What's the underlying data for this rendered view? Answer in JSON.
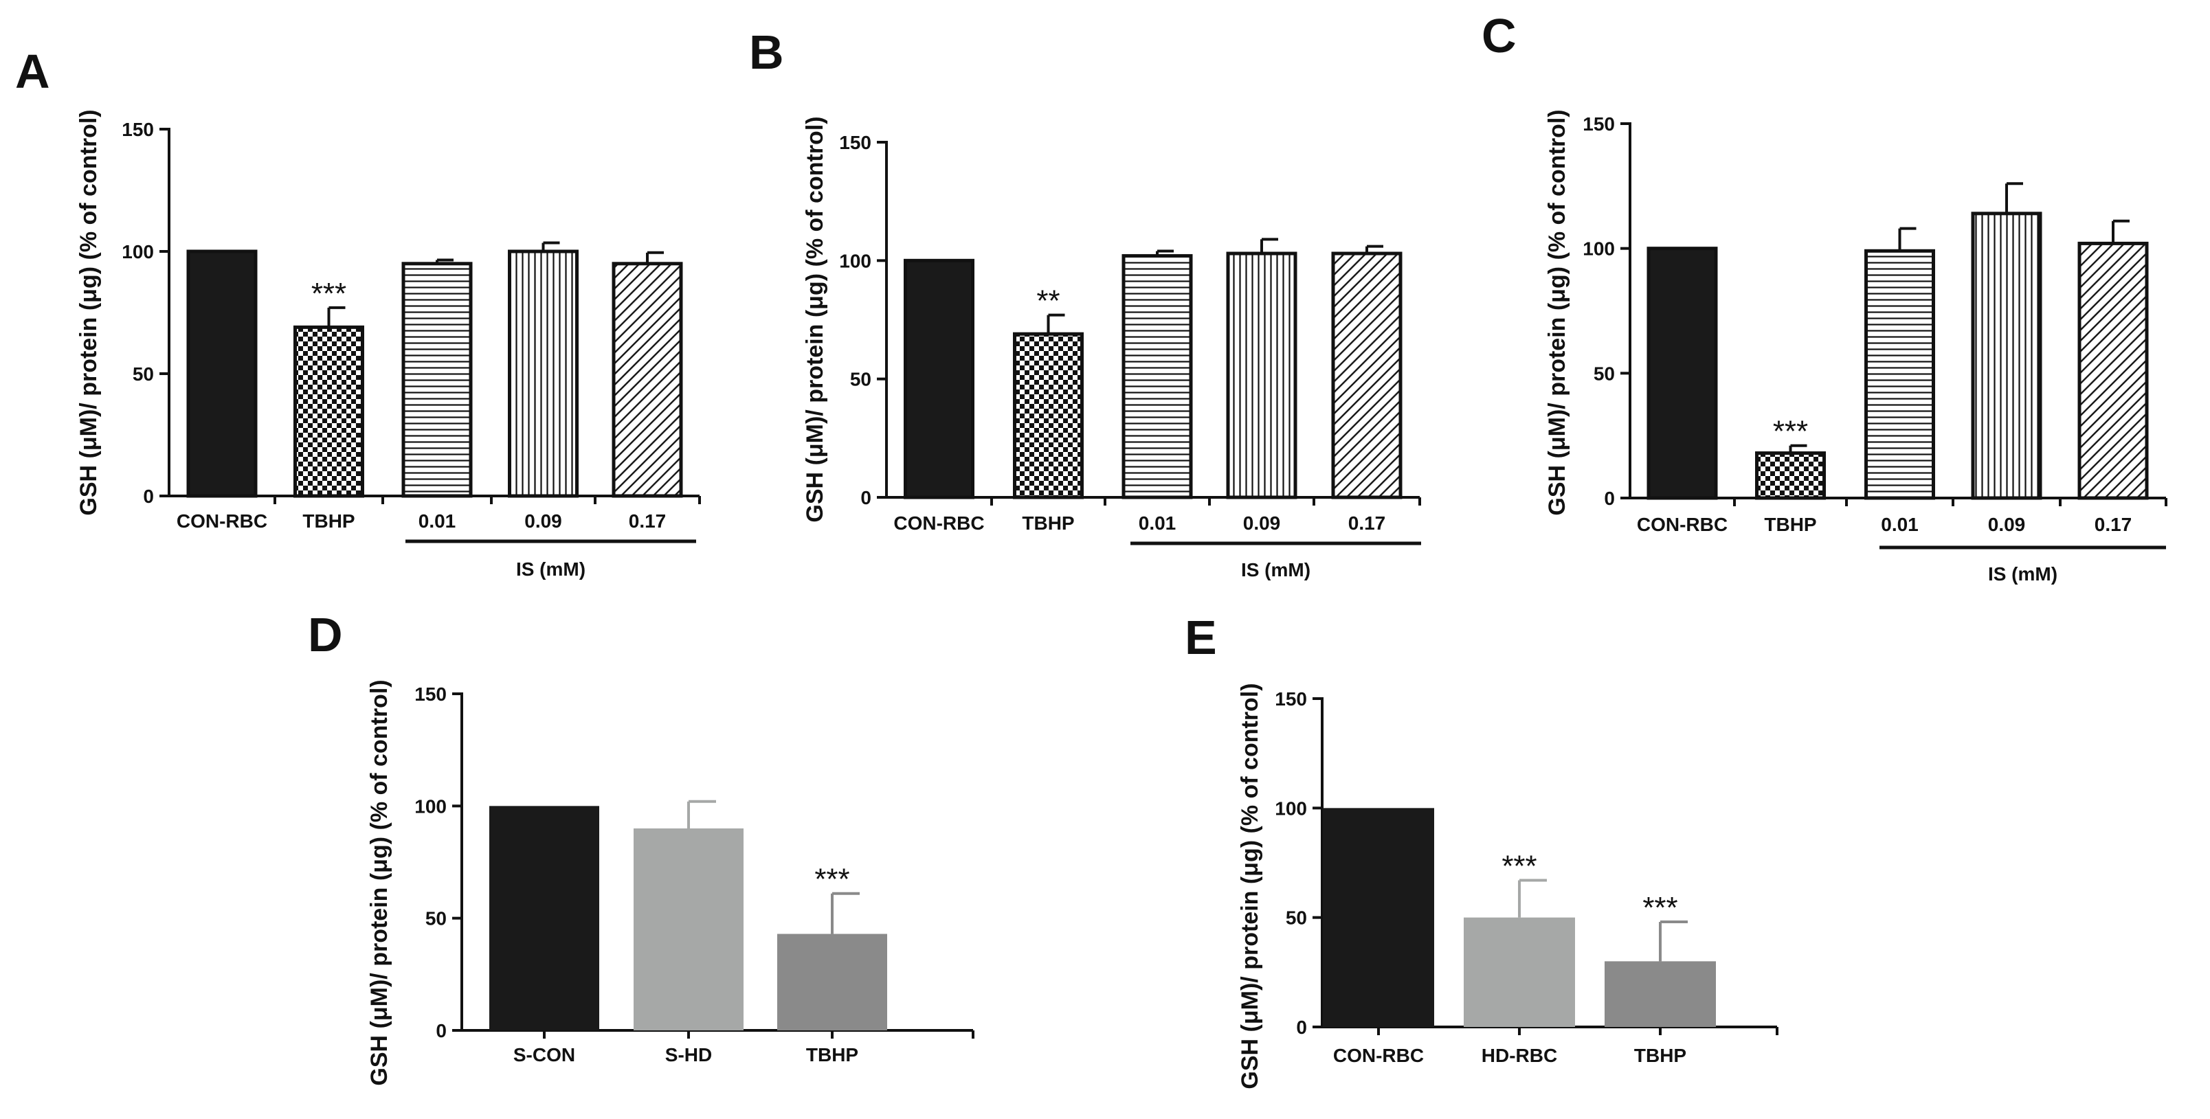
{
  "figure": {
    "y_axis_label": "GSH (μM)/ protein (μg) (% of control)"
  },
  "chart_data": [
    {
      "panel": "A",
      "type": "bar",
      "ylabel": "GSH (μM)/ protein (μg) (% of control)",
      "ylim": [
        0,
        150
      ],
      "yticks": [
        0,
        50,
        100,
        150
      ],
      "categories": [
        "CON-RBC",
        "TBHP",
        "0.01",
        "0.09",
        "0.17"
      ],
      "values": [
        100,
        69,
        95,
        100,
        95
      ],
      "errors": [
        0,
        8,
        1.5,
        3.5,
        4.5
      ],
      "significance": [
        "",
        "***",
        "",
        "",
        ""
      ],
      "patterns": [
        "solid-black",
        "checker",
        "horizontal",
        "vertical",
        "diagonal"
      ],
      "group_label": "IS (mM)"
    },
    {
      "panel": "B",
      "type": "bar",
      "ylabel": "GSH (μM)/ protein (μg) (% of control)",
      "ylim": [
        0,
        150
      ],
      "yticks": [
        0,
        50,
        100,
        150
      ],
      "categories": [
        "CON-RBC",
        "TBHP",
        "0.01",
        "0.09",
        "0.17"
      ],
      "values": [
        100,
        69,
        102,
        103,
        103
      ],
      "errors": [
        0,
        8,
        2,
        6,
        3
      ],
      "significance": [
        "",
        "**",
        "",
        "",
        ""
      ],
      "patterns": [
        "solid-black",
        "checker",
        "horizontal",
        "vertical",
        "diagonal"
      ],
      "group_label": "IS (mM)"
    },
    {
      "panel": "C",
      "type": "bar",
      "ylabel": "GSH (μM)/ protein (μg) (% of control)",
      "ylim": [
        0,
        150
      ],
      "yticks": [
        0,
        50,
        100,
        150
      ],
      "categories": [
        "CON-RBC",
        "TBHP",
        "0.01",
        "0.09",
        "0.17"
      ],
      "values": [
        100,
        18,
        99,
        114,
        102
      ],
      "errors": [
        0,
        3,
        9,
        12,
        9
      ],
      "significance": [
        "",
        "***",
        "",
        "",
        ""
      ],
      "patterns": [
        "solid-black",
        "checker",
        "horizontal",
        "vertical",
        "diagonal"
      ],
      "group_label": "IS (mM)"
    },
    {
      "panel": "D",
      "type": "bar",
      "ylabel": "GSH (μM)/ protein (μg) (% of control)",
      "ylim": [
        0,
        150
      ],
      "yticks": [
        0,
        50,
        100,
        150
      ],
      "categories": [
        "S-CON",
        "S-HD",
        "TBHP"
      ],
      "values": [
        100,
        90,
        43
      ],
      "errors": [
        0,
        12,
        18
      ],
      "significance": [
        "",
        "",
        "***"
      ],
      "colors": [
        "#1a1a1a",
        "#a6a8a7",
        "#8a8a8a"
      ]
    },
    {
      "panel": "E",
      "type": "bar",
      "ylabel": "GSH (μM)/ protein (μg) (% of control)",
      "ylim": [
        0,
        150
      ],
      "yticks": [
        0,
        50,
        100,
        150
      ],
      "categories": [
        "CON-RBC",
        "HD-RBC",
        "TBHP"
      ],
      "values": [
        100,
        50,
        30
      ],
      "errors": [
        0,
        17,
        18
      ],
      "significance": [
        "",
        "***",
        "***"
      ],
      "colors": [
        "#1a1a1a",
        "#a6a8a7",
        "#8a8a8a"
      ]
    }
  ]
}
